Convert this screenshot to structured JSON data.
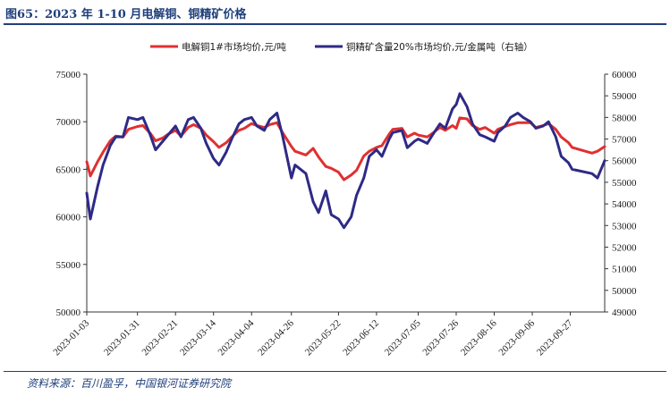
{
  "header": {
    "title": "图65：2023 年 1-10 月电解铜、铜精矿价格"
  },
  "footer": {
    "source": "资料来源：百川盈孚，中国银河证券研究院"
  },
  "colors": {
    "left_series": "#e03030",
    "right_series": "#2e2a86",
    "frame": "#1f3f7a"
  },
  "chart_data": {
    "type": "line",
    "title": "",
    "xlabel": "",
    "ylabel_left": "元/吨",
    "ylabel_right": "元/金属吨",
    "x_range": [
      "2023-01-03",
      "2023-10-16"
    ],
    "x_ticks": [
      "2023-01-03",
      "2023-01-31",
      "2023-02-21",
      "2023-03-14",
      "2023-04-04",
      "2023-04-26",
      "2023-05-22",
      "2023-06-12",
      "2023-07-05",
      "2023-07-26",
      "2023-08-16",
      "2023-09-06",
      "2023-09-27"
    ],
    "ylim_left": [
      50000,
      75000
    ],
    "y_ticks_left": [
      "50000",
      "55000",
      "60000",
      "65000",
      "70000",
      "75000"
    ],
    "ylim_right": [
      49000,
      60000
    ],
    "y_ticks_right": [
      "49000",
      "50000",
      "51000",
      "52000",
      "53000",
      "54000",
      "55000",
      "56000",
      "57000",
      "58000",
      "59000",
      "60000"
    ],
    "legend_position": "top-center",
    "series": [
      {
        "name": "电解铜1#市场均价,元/吨",
        "axis": "left",
        "points": [
          [
            "2023-01-03",
            65800
          ],
          [
            "2023-01-05",
            64300
          ],
          [
            "2023-01-09",
            65800
          ],
          [
            "2023-01-12",
            66800
          ],
          [
            "2023-01-16",
            68000
          ],
          [
            "2023-01-19",
            68500
          ],
          [
            "2023-01-23",
            68400
          ],
          [
            "2023-01-26",
            69200
          ],
          [
            "2023-01-31",
            69500
          ],
          [
            "2023-02-03",
            69600
          ],
          [
            "2023-02-07",
            68800
          ],
          [
            "2023-02-10",
            68000
          ],
          [
            "2023-02-14",
            68300
          ],
          [
            "2023-02-17",
            68700
          ],
          [
            "2023-02-21",
            69100
          ],
          [
            "2023-02-24",
            68500
          ],
          [
            "2023-02-28",
            69400
          ],
          [
            "2023-03-03",
            69700
          ],
          [
            "2023-03-07",
            69300
          ],
          [
            "2023-03-10",
            68600
          ],
          [
            "2023-03-14",
            67900
          ],
          [
            "2023-03-17",
            67300
          ],
          [
            "2023-03-21",
            67800
          ],
          [
            "2023-03-24",
            68400
          ],
          [
            "2023-03-28",
            69100
          ],
          [
            "2023-03-31",
            69300
          ],
          [
            "2023-04-04",
            69800
          ],
          [
            "2023-04-07",
            69600
          ],
          [
            "2023-04-11",
            69400
          ],
          [
            "2023-04-14",
            69700
          ],
          [
            "2023-04-18",
            69900
          ],
          [
            "2023-04-21",
            68900
          ],
          [
            "2023-04-26",
            67400
          ],
          [
            "2023-04-28",
            66900
          ],
          [
            "2023-05-04",
            66500
          ],
          [
            "2023-05-08",
            67200
          ],
          [
            "2023-05-11",
            66300
          ],
          [
            "2023-05-15",
            65300
          ],
          [
            "2023-05-18",
            65100
          ],
          [
            "2023-05-22",
            64700
          ],
          [
            "2023-05-25",
            63900
          ],
          [
            "2023-05-29",
            64400
          ],
          [
            "2023-06-01",
            64900
          ],
          [
            "2023-06-05",
            66400
          ],
          [
            "2023-06-08",
            66900
          ],
          [
            "2023-06-12",
            67300
          ],
          [
            "2023-06-15",
            67500
          ],
          [
            "2023-06-19",
            68700
          ],
          [
            "2023-06-21",
            69200
          ],
          [
            "2023-06-26",
            69300
          ],
          [
            "2023-06-29",
            68400
          ],
          [
            "2023-07-03",
            68800
          ],
          [
            "2023-07-05",
            68600
          ],
          [
            "2023-07-10",
            68400
          ],
          [
            "2023-07-13",
            68800
          ],
          [
            "2023-07-17",
            69400
          ],
          [
            "2023-07-20",
            69100
          ],
          [
            "2023-07-24",
            69600
          ],
          [
            "2023-07-26",
            69300
          ],
          [
            "2023-07-28",
            70400
          ],
          [
            "2023-08-01",
            70300
          ],
          [
            "2023-08-04",
            69600
          ],
          [
            "2023-08-08",
            69200
          ],
          [
            "2023-08-11",
            69400
          ],
          [
            "2023-08-16",
            68800
          ],
          [
            "2023-08-18",
            69200
          ],
          [
            "2023-08-22",
            69500
          ],
          [
            "2023-08-25",
            69700
          ],
          [
            "2023-08-29",
            69900
          ],
          [
            "2023-09-01",
            69900
          ],
          [
            "2023-09-05",
            69900
          ],
          [
            "2023-09-08",
            69400
          ],
          [
            "2023-09-12",
            69600
          ],
          [
            "2023-09-15",
            69800
          ],
          [
            "2023-09-19",
            69200
          ],
          [
            "2023-09-22",
            68400
          ],
          [
            "2023-09-26",
            67800
          ],
          [
            "2023-09-28",
            67300
          ],
          [
            "2023-10-09",
            66700
          ],
          [
            "2023-10-12",
            66900
          ],
          [
            "2023-10-16",
            67400
          ]
        ]
      },
      {
        "name": "铜精矿含量20%市场均价,元/金属吨（右轴）",
        "axis": "right",
        "points": [
          [
            "2023-01-03",
            54500
          ],
          [
            "2023-01-05",
            53300
          ],
          [
            "2023-01-09",
            54800
          ],
          [
            "2023-01-12",
            55800
          ],
          [
            "2023-01-16",
            56700
          ],
          [
            "2023-01-19",
            57100
          ],
          [
            "2023-01-23",
            57100
          ],
          [
            "2023-01-26",
            58000
          ],
          [
            "2023-01-31",
            57900
          ],
          [
            "2023-02-03",
            58000
          ],
          [
            "2023-02-07",
            57200
          ],
          [
            "2023-02-10",
            56500
          ],
          [
            "2023-02-14",
            56900
          ],
          [
            "2023-02-17",
            57200
          ],
          [
            "2023-02-21",
            57600
          ],
          [
            "2023-02-24",
            57100
          ],
          [
            "2023-02-28",
            57900
          ],
          [
            "2023-03-03",
            58000
          ],
          [
            "2023-03-07",
            57500
          ],
          [
            "2023-03-10",
            56800
          ],
          [
            "2023-03-14",
            56100
          ],
          [
            "2023-03-17",
            55800
          ],
          [
            "2023-03-21",
            56400
          ],
          [
            "2023-03-24",
            57000
          ],
          [
            "2023-03-28",
            57700
          ],
          [
            "2023-03-31",
            57900
          ],
          [
            "2023-04-04",
            58000
          ],
          [
            "2023-04-07",
            57600
          ],
          [
            "2023-04-11",
            57400
          ],
          [
            "2023-04-14",
            57900
          ],
          [
            "2023-04-18",
            58200
          ],
          [
            "2023-04-21",
            57200
          ],
          [
            "2023-04-26",
            55200
          ],
          [
            "2023-04-28",
            55800
          ],
          [
            "2023-05-04",
            55400
          ],
          [
            "2023-05-08",
            54100
          ],
          [
            "2023-05-11",
            53600
          ],
          [
            "2023-05-15",
            54600
          ],
          [
            "2023-05-18",
            53500
          ],
          [
            "2023-05-22",
            53300
          ],
          [
            "2023-05-25",
            52900
          ],
          [
            "2023-05-29",
            53400
          ],
          [
            "2023-06-01",
            54400
          ],
          [
            "2023-06-05",
            55200
          ],
          [
            "2023-06-08",
            56200
          ],
          [
            "2023-06-12",
            56500
          ],
          [
            "2023-06-15",
            56200
          ],
          [
            "2023-06-19",
            57000
          ],
          [
            "2023-06-21",
            57300
          ],
          [
            "2023-06-26",
            57400
          ],
          [
            "2023-06-29",
            56600
          ],
          [
            "2023-07-03",
            56900
          ],
          [
            "2023-07-05",
            57000
          ],
          [
            "2023-07-10",
            56800
          ],
          [
            "2023-07-13",
            57200
          ],
          [
            "2023-07-17",
            57700
          ],
          [
            "2023-07-20",
            57500
          ],
          [
            "2023-07-24",
            58400
          ],
          [
            "2023-07-26",
            58600
          ],
          [
            "2023-07-28",
            59100
          ],
          [
            "2023-08-01",
            58500
          ],
          [
            "2023-08-04",
            57700
          ],
          [
            "2023-08-08",
            57200
          ],
          [
            "2023-08-11",
            57100
          ],
          [
            "2023-08-16",
            56900
          ],
          [
            "2023-08-18",
            57300
          ],
          [
            "2023-08-22",
            57600
          ],
          [
            "2023-08-25",
            58000
          ],
          [
            "2023-08-29",
            58200
          ],
          [
            "2023-09-01",
            58000
          ],
          [
            "2023-09-05",
            57800
          ],
          [
            "2023-09-08",
            57500
          ],
          [
            "2023-09-12",
            57600
          ],
          [
            "2023-09-15",
            57800
          ],
          [
            "2023-09-19",
            57100
          ],
          [
            "2023-09-22",
            56200
          ],
          [
            "2023-09-26",
            55900
          ],
          [
            "2023-09-28",
            55600
          ],
          [
            "2023-10-09",
            55400
          ],
          [
            "2023-10-12",
            55200
          ],
          [
            "2023-10-16",
            56000
          ]
        ]
      }
    ]
  }
}
